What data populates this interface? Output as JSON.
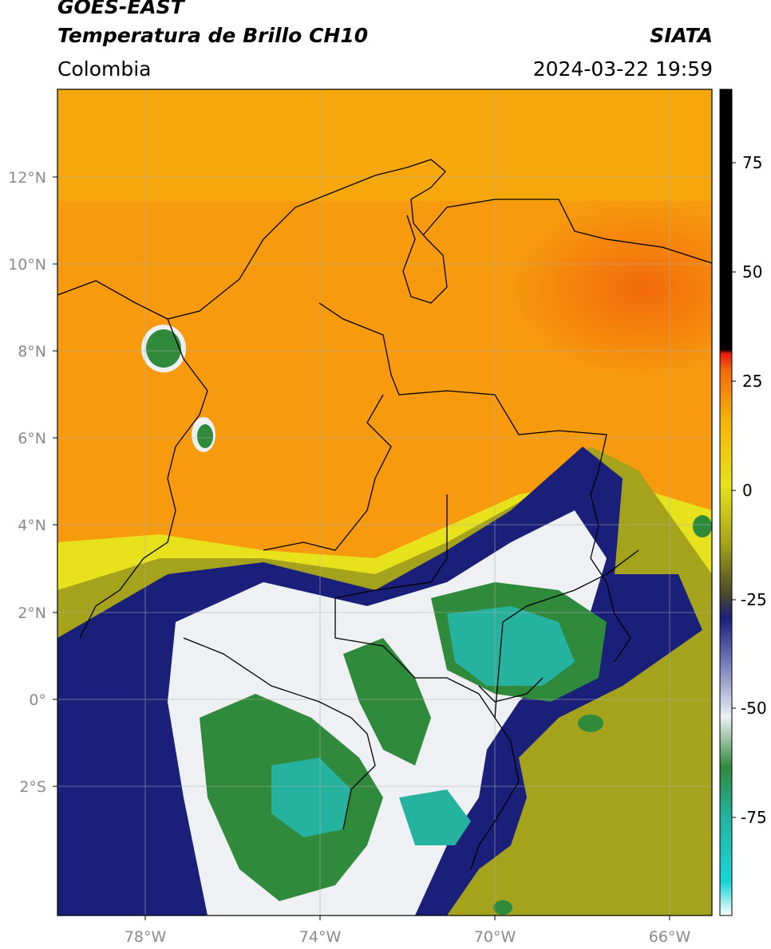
{
  "header": {
    "satellite": "GOES-EAST",
    "product": "Temperatura de Brillo CH10",
    "region": "Colombia",
    "agency": "SIATA",
    "datetime": "2024-03-22 19:59"
  },
  "map": {
    "lon_ticks": [
      "78°W",
      "74°W",
      "70°W",
      "66°W"
    ],
    "lat_ticks": [
      "12°N",
      "10°N",
      "8°N",
      "6°N",
      "4°N",
      "2°N",
      "0°",
      "2°S"
    ],
    "colorbar_ticks": [
      "75",
      "50",
      "25",
      "0",
      "-25",
      "-50",
      "-75"
    ],
    "colors": {
      "warm_orange": "#f79a0e",
      "hot_orange": "#f26a0a",
      "yellow": "#e7e21c",
      "olive": "#a4a31b",
      "navy": "#1a1f7a",
      "white_cloud": "#eef0f4",
      "green": "#2f8a3c",
      "teal": "#25b3a0",
      "cyan": "#18d6d6",
      "red": "#e81c10",
      "black": "#000000"
    }
  }
}
